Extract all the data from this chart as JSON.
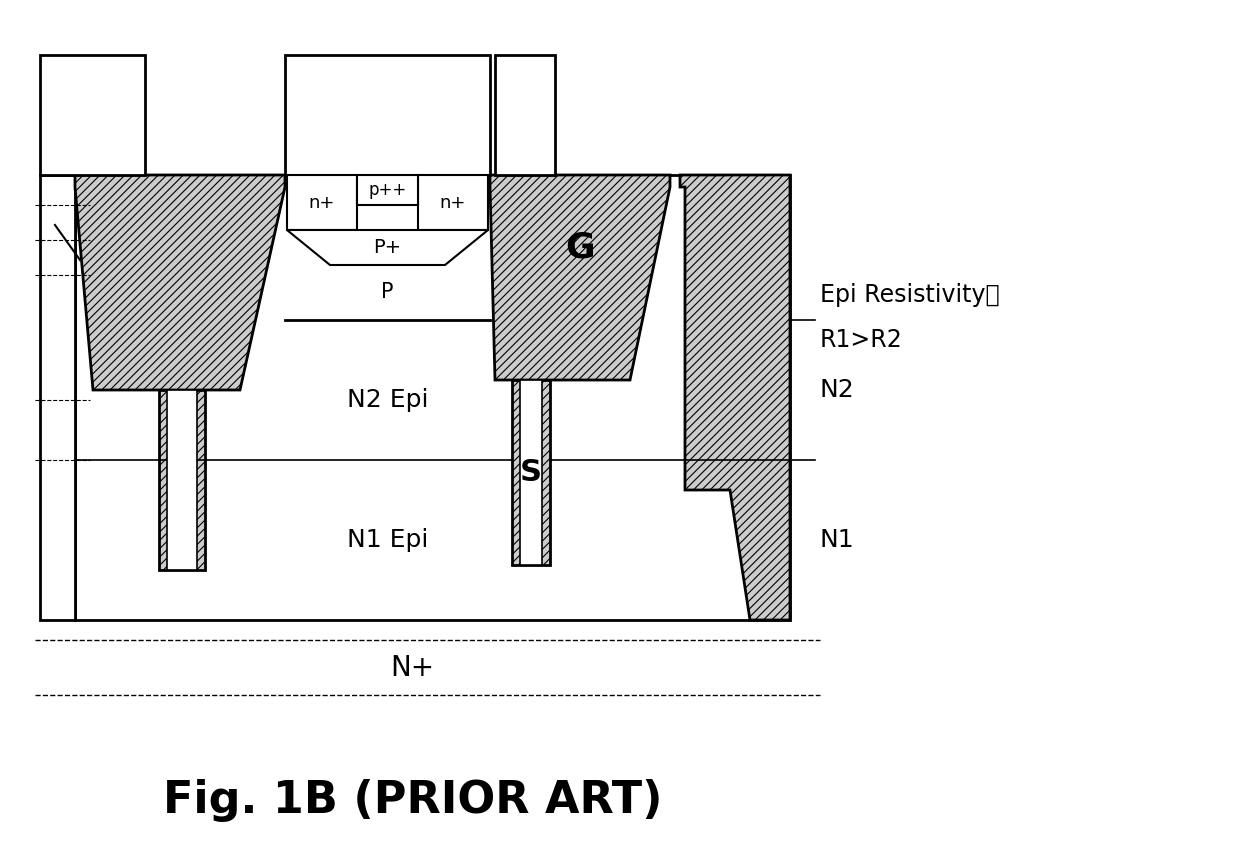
{
  "bg_color": "#ffffff",
  "n_plus_label": "n+",
  "p_plus_plus_label": "p++",
  "p_plus_label": "P+",
  "p_label": "P",
  "n2_epi_label": "N2 Epi",
  "n1_epi_label": "N1 Epi",
  "g_label": "G",
  "s_label": "S",
  "n2_label": "N2",
  "n1_label": "N1",
  "nplus_substrate_label": "N+",
  "figure_label": "Fig. 1B (PRIOR ART)",
  "epi_line1": "Epi Resistivity：",
  "epi_line2": "R1>R2"
}
